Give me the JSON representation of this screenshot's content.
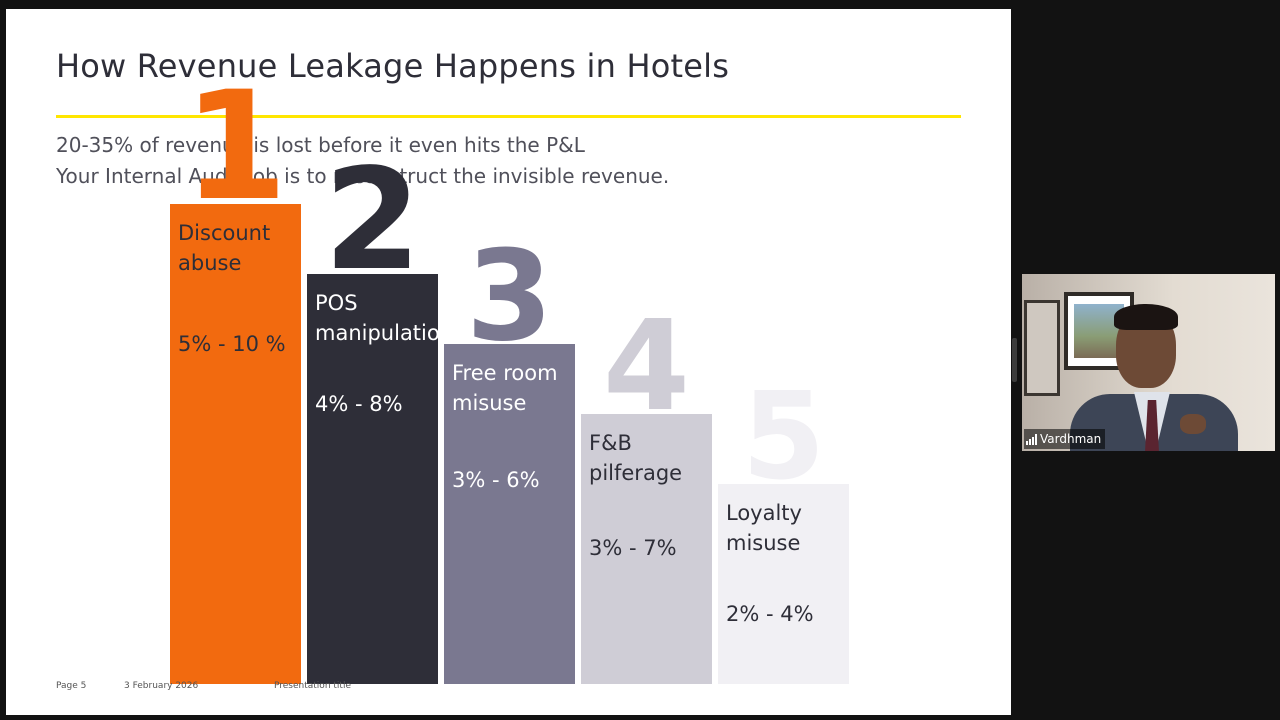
{
  "slide": {
    "title": "How Revenue Leakage Happens in Hotels",
    "subtitle_lines": [
      "20-35% of revenue is lost before it even hits the P&L",
      "Your Internal Audit job is to reconstruct the invisible revenue."
    ],
    "footer": {
      "page": "Page 5",
      "date": "3 February 2026",
      "presentation": "Presentation title"
    }
  },
  "chart_data": {
    "type": "bar",
    "title": "",
    "categories": [
      "Discount abuse",
      "POS manipulation",
      "Free room misuse",
      "F&B pilferage",
      "Loyalty misuse"
    ],
    "ranks": [
      "1",
      "2",
      "3",
      "4",
      "5"
    ],
    "ranges": [
      "5% - 10 %",
      "4% - 8%",
      "3% - 6%",
      "3% - 7%",
      "2% - 4%"
    ],
    "labels_display": [
      "Discount\nabuse",
      "POS\nmanipulation",
      "Free room\nmisuse",
      "F&B\npilferage",
      "Loyalty\nmisuse"
    ],
    "rank_value": [
      5,
      4,
      3,
      2,
      1
    ],
    "colors": [
      "#f26a0f",
      "#2e2e38",
      "#7a7890",
      "#cfcdd6",
      "#f1f0f4"
    ],
    "rank_colors": [
      "#f26a0f",
      "#2e2e38",
      "#7a7890",
      "#cfcdd6",
      "#f1f0f4"
    ],
    "text_colors": [
      "#2e2e38",
      "#ffffff",
      "#ffffff",
      "#2e2e38",
      "#2e2e38"
    ]
  },
  "webcam": {
    "participant_name": "Vardhman"
  }
}
